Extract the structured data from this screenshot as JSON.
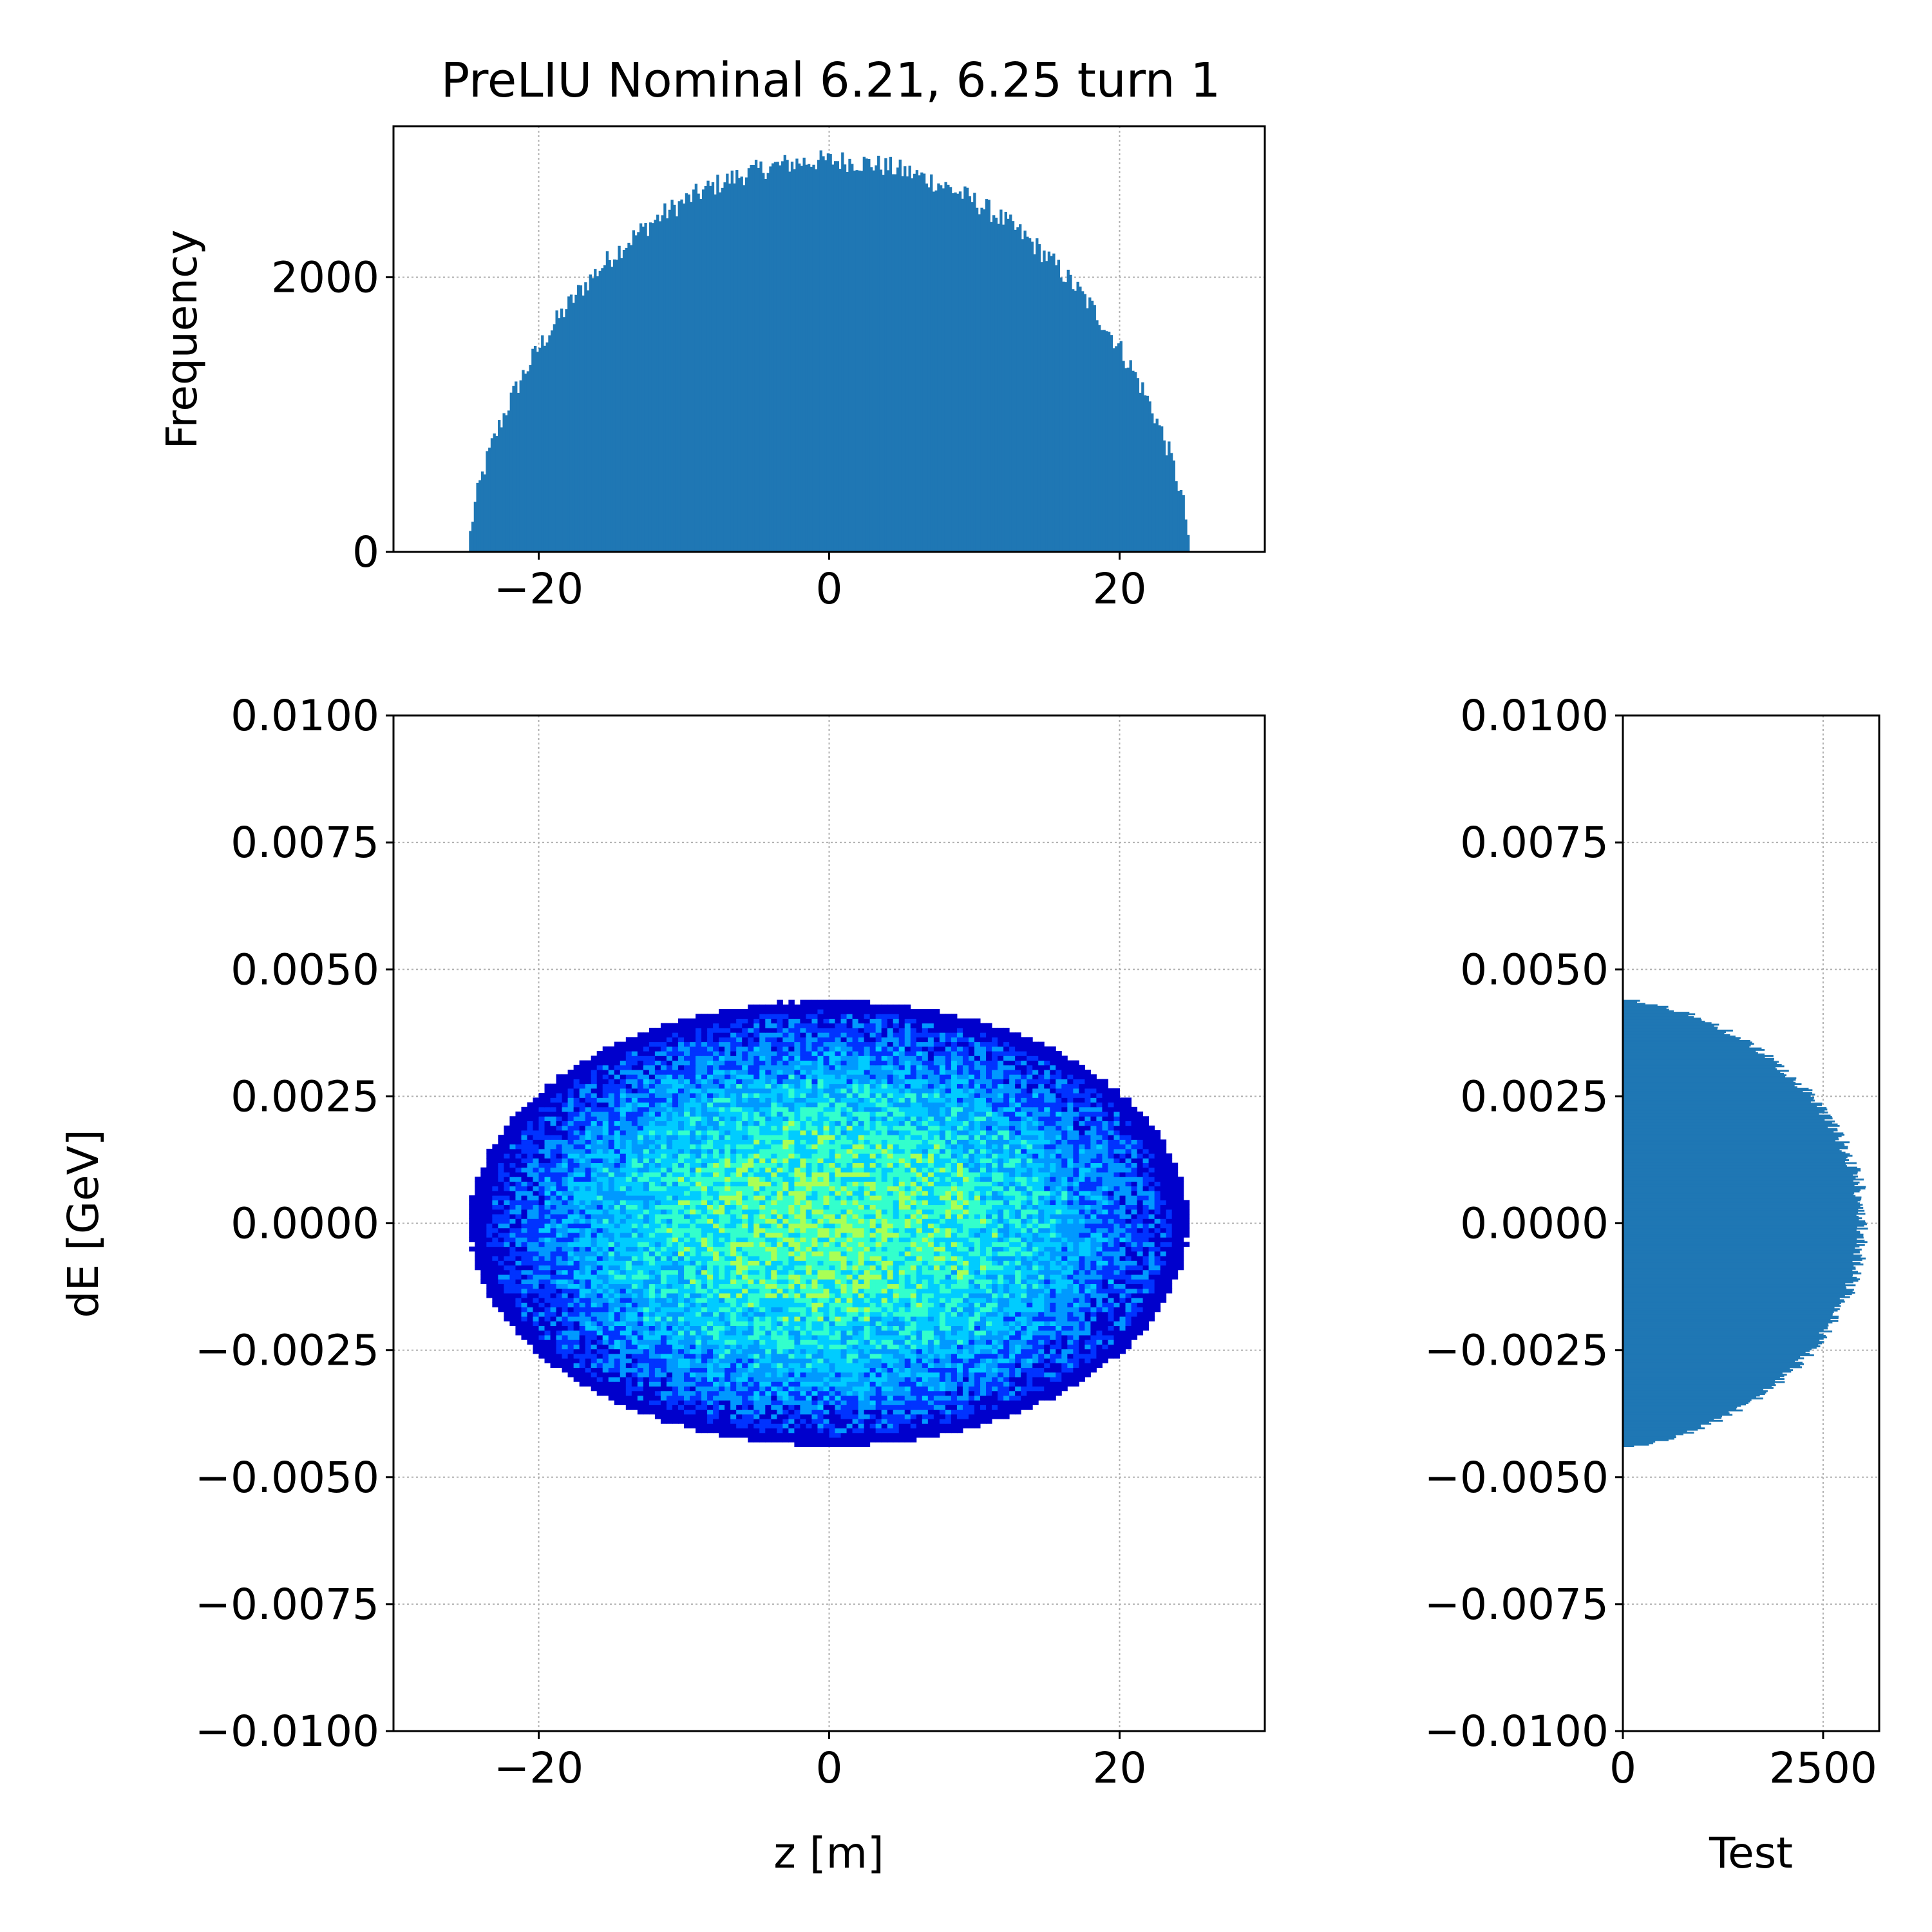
{
  "title": "PreLIU Nominal 6.21, 6.25 turn 1",
  "chart_data": [
    {
      "panel": "top-histogram",
      "type": "bar",
      "title": "PreLIU Nominal 6.21, 6.25 turn 1",
      "xlabel": "",
      "ylabel": "Frequency",
      "xlim": [
        -30,
        30
      ],
      "ylim": [
        0,
        3100
      ],
      "xticks": [
        -20,
        0,
        20
      ],
      "yticks": [
        0,
        2000
      ],
      "xtick_labels": [
        "−20",
        "0",
        "20"
      ],
      "ytick_labels": [
        "0",
        "2000"
      ],
      "grid": true,
      "distribution": {
        "center": 0,
        "half_width": 24.8,
        "peak": 2850,
        "shape": "semicircle-like",
        "bins": 300
      },
      "color": "#1f77b4"
    },
    {
      "panel": "phase-space",
      "type": "heatmap",
      "xlabel": "z [m]",
      "ylabel": "dE [GeV]",
      "xlim": [
        -30,
        30
      ],
      "ylim": [
        -0.01,
        0.01
      ],
      "xticks": [
        -20,
        0,
        20
      ],
      "yticks": [
        -0.01,
        -0.0075,
        -0.005,
        -0.0025,
        0.0,
        0.0025,
        0.005,
        0.0075,
        0.01
      ],
      "xtick_labels": [
        "−20",
        "0",
        "20"
      ],
      "ytick_labels": [
        "−0.0100",
        "−0.0075",
        "−0.0050",
        "−0.0025",
        "0.0000",
        "0.0025",
        "0.0050",
        "0.0075",
        "0.0100"
      ],
      "grid": true,
      "ellipse": {
        "center": [
          0,
          0
        ],
        "z_half_width": 24.8,
        "dE_half_height": 0.0044
      },
      "colormap": [
        "#0000cc",
        "#0033ff",
        "#0099ff",
        "#00ccff",
        "#33ffcc",
        "#aaff55"
      ]
    },
    {
      "panel": "right-histogram",
      "type": "bar",
      "orientation": "horizontal",
      "xlabel": "Test",
      "ylabel": "",
      "xlim": [
        0,
        3200
      ],
      "ylim": [
        -0.01,
        0.01
      ],
      "xticks": [
        0,
        2500
      ],
      "yticks": [
        -0.01,
        -0.0075,
        -0.005,
        -0.0025,
        0.0,
        0.0025,
        0.005,
        0.0075,
        0.01
      ],
      "xtick_labels": [
        "0",
        "2500"
      ],
      "ytick_labels": [
        "−0.0100",
        "−0.0075",
        "−0.0050",
        "−0.0025",
        "0.0000",
        "0.0025",
        "0.0050",
        "0.0075",
        "0.0100"
      ],
      "grid": true,
      "distribution": {
        "center": 0,
        "half_width": 0.0044,
        "peak": 3000,
        "bins": 300
      },
      "color": "#1f77b4"
    }
  ]
}
